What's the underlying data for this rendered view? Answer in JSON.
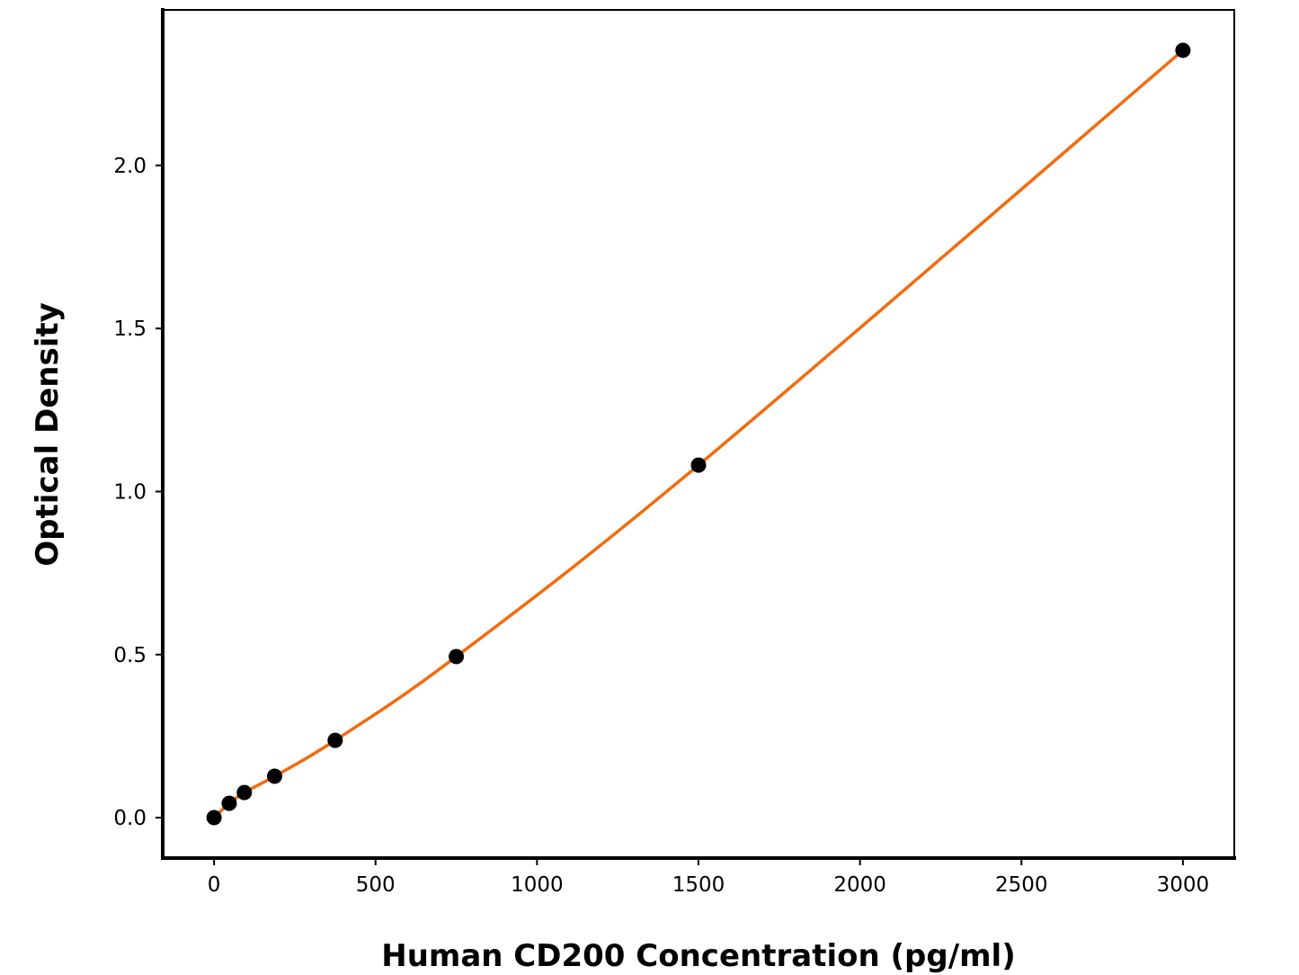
{
  "chart_data": {
    "type": "line",
    "title": "",
    "xlabel": "Human CD200 Concentration (pg/ml)",
    "ylabel": "Optical Density",
    "xlim": [
      -159,
      3159
    ],
    "ylim": [
      -0.124,
      2.477
    ],
    "xticks": [
      0,
      500,
      1000,
      1500,
      2000,
      2500,
      3000
    ],
    "xtick_labels": [
      "0",
      "500",
      "1000",
      "1500",
      "2000",
      "2500",
      "3000"
    ],
    "yticks": [
      0.0,
      0.5,
      1.0,
      1.5,
      2.0
    ],
    "ytick_labels": [
      "0.0",
      "0.5",
      "1.0",
      "1.5",
      "2.0"
    ],
    "grid": false,
    "series": [
      {
        "x": [
          0,
          46.875,
          93.75,
          187.5,
          375,
          750,
          1500,
          3000
        ],
        "y": [
          0.0,
          0.044,
          0.077,
          0.127,
          0.237,
          0.494,
          1.081,
          2.353
        ],
        "marker_color": "#000000",
        "line_color": "#f26b0f"
      }
    ]
  }
}
